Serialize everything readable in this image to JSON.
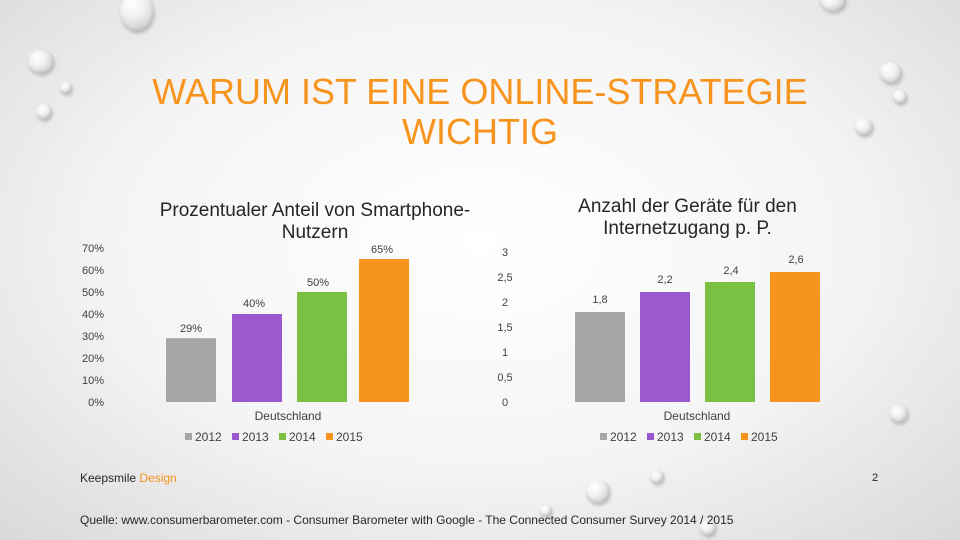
{
  "slide": {
    "title": "WARUM IST EINE ONLINE-STRATEGIE WICHTIG",
    "footer_brand": "Keepsmile",
    "footer_brand_accent": "Design",
    "page_number": "2",
    "source": "Quelle: www.consumerbarometer.com - Consumer Barometer with Google - The Connected Consumer Survey 2014 / 2015"
  },
  "colors": {
    "title": "#f7941d",
    "accent": "#f7941d",
    "series": [
      "#a6a6a6",
      "#9b59d0",
      "#7ac143",
      "#f7941d"
    ]
  },
  "chart_data": [
    {
      "type": "bar",
      "title": "Prozentualer Anteil von Smartphone-Nutzern",
      "categories": [
        "Deutschland"
      ],
      "series": [
        {
          "name": "2012",
          "values": [
            29
          ]
        },
        {
          "name": "2013",
          "values": [
            40
          ]
        },
        {
          "name": "2014",
          "values": [
            50
          ]
        },
        {
          "name": "2015",
          "values": [
            65
          ]
        }
      ],
      "data_labels": [
        "29%",
        "40%",
        "50%",
        "65%"
      ],
      "yticks": [
        "0%",
        "10%",
        "20%",
        "30%",
        "40%",
        "50%",
        "60%",
        "70%"
      ],
      "ylim": [
        0,
        70
      ],
      "grid": false,
      "legend": "bottom"
    },
    {
      "type": "bar",
      "title": "Anzahl der Geräte für den Internetzugang p. P.",
      "categories": [
        "Deutschland"
      ],
      "series": [
        {
          "name": "2012",
          "values": [
            1.8
          ]
        },
        {
          "name": "2013",
          "values": [
            2.2
          ]
        },
        {
          "name": "2014",
          "values": [
            2.4
          ]
        },
        {
          "name": "2015",
          "values": [
            2.6
          ]
        }
      ],
      "data_labels": [
        "1,8",
        "2,2",
        "2,4",
        "2,6"
      ],
      "yticks": [
        "0",
        "0,5",
        "1",
        "1,5",
        "2",
        "2,5",
        "3"
      ],
      "ylim": [
        0,
        3
      ],
      "grid": false,
      "legend": "bottom"
    }
  ]
}
